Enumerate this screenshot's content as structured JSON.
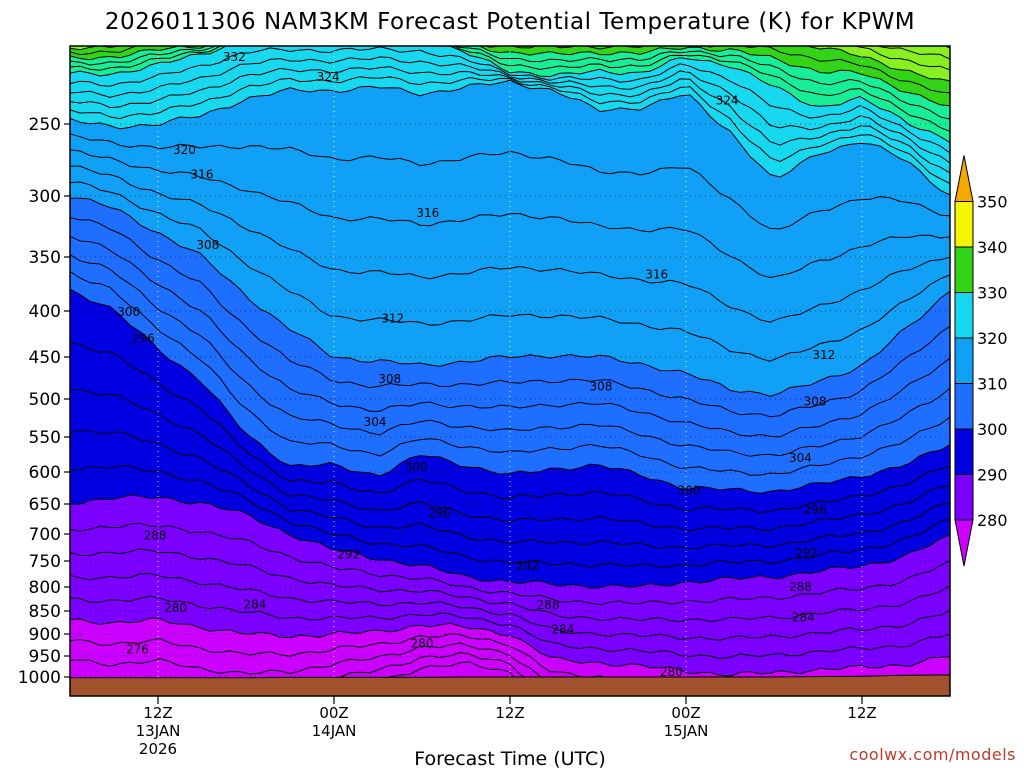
{
  "chart_data": {
    "type": "heatmap",
    "title": "2026011306 NAM3KM Forecast Potential Temperature (K) for KPWM",
    "xlabel": "Forecast Time (UTC)",
    "ylabel": "",
    "credit": "coolwx.com/models",
    "y_ticks": [
      250,
      300,
      350,
      400,
      450,
      500,
      550,
      600,
      650,
      700,
      750,
      800,
      850,
      900,
      950,
      1000
    ],
    "y_tick_labels": [
      "250",
      "300",
      "350",
      "400",
      "450",
      "500",
      "550",
      "600",
      "650",
      "700",
      "750",
      "800",
      "850",
      "900",
      "950",
      "1000"
    ],
    "ylim": [
      200,
      1010
    ],
    "x_range_hours": [
      6,
      66
    ],
    "x_ticks": [
      {
        "hour": 12,
        "line1": "12Z",
        "line2": "13JAN",
        "line3": "2026"
      },
      {
        "hour": 24,
        "line1": "00Z",
        "line2": "14JAN",
        "line3": ""
      },
      {
        "hour": 36,
        "line1": "12Z",
        "line2": "",
        "line3": ""
      },
      {
        "hour": 48,
        "line1": "00Z",
        "line2": "15JAN",
        "line3": ""
      },
      {
        "hour": 60,
        "line1": "12Z",
        "line2": "",
        "line3": ""
      }
    ],
    "colorbar": {
      "levels": [
        280,
        290,
        300,
        310,
        320,
        330,
        340,
        350
      ],
      "labels": [
        "280",
        "290",
        "300",
        "310",
        "320",
        "330",
        "340",
        "350"
      ],
      "colors": [
        "#cc00ff",
        "#7b00ff",
        "#0000e0",
        "#1e6fff",
        "#10a0f5",
        "#18d8f0",
        "#18ee98",
        "#33d418",
        "#88f020",
        "#f5f500",
        "#f5a800"
      ]
    },
    "contour_interval": 2,
    "contour_labels": [
      {
        "v": 332,
        "hour": 17.2,
        "p": 210
      },
      {
        "v": 324,
        "hour": 23.6,
        "p": 222
      },
      {
        "v": 324,
        "hour": 50.8,
        "p": 236
      },
      {
        "v": 320,
        "hour": 13.8,
        "p": 268
      },
      {
        "v": 316,
        "hour": 15.0,
        "p": 285
      },
      {
        "v": 316,
        "hour": 30.4,
        "p": 314
      },
      {
        "v": 316,
        "hour": 46.0,
        "p": 366
      },
      {
        "v": 308,
        "hour": 15.4,
        "p": 340
      },
      {
        "v": 312,
        "hour": 28.0,
        "p": 408
      },
      {
        "v": 312,
        "hour": 57.4,
        "p": 448
      },
      {
        "v": 300,
        "hour": 10.0,
        "p": 401
      },
      {
        "v": 296,
        "hour": 11.0,
        "p": 430
      },
      {
        "v": 308,
        "hour": 27.8,
        "p": 476
      },
      {
        "v": 308,
        "hour": 42.2,
        "p": 485
      },
      {
        "v": 308,
        "hour": 56.8,
        "p": 503
      },
      {
        "v": 304,
        "hour": 26.8,
        "p": 530
      },
      {
        "v": 304,
        "hour": 55.8,
        "p": 580
      },
      {
        "v": 300,
        "hour": 29.6,
        "p": 593
      },
      {
        "v": 300,
        "hour": 48.2,
        "p": 629
      },
      {
        "v": 296,
        "hour": 31.2,
        "p": 665
      },
      {
        "v": 296,
        "hour": 56.8,
        "p": 660
      },
      {
        "v": 292,
        "hour": 25.0,
        "p": 738
      },
      {
        "v": 292,
        "hour": 37.2,
        "p": 760
      },
      {
        "v": 292,
        "hour": 56.2,
        "p": 735
      },
      {
        "v": 288,
        "hour": 11.8,
        "p": 703
      },
      {
        "v": 288,
        "hour": 38.6,
        "p": 838
      },
      {
        "v": 288,
        "hour": 55.8,
        "p": 800
      },
      {
        "v": 284,
        "hour": 18.6,
        "p": 836
      },
      {
        "v": 284,
        "hour": 39.6,
        "p": 890
      },
      {
        "v": 284,
        "hour": 56.0,
        "p": 864
      },
      {
        "v": 280,
        "hour": 13.2,
        "p": 844
      },
      {
        "v": 280,
        "hour": 30.0,
        "p": 922
      },
      {
        "v": 280,
        "hour": 47.0,
        "p": 988
      },
      {
        "v": 276,
        "hour": 10.6,
        "p": 935
      }
    ],
    "thermal_layers": [
      {
        "v": 280,
        "p": [
          870,
          875,
          870,
          885,
          900,
          905,
          900,
          895,
          880,
          885,
          900,
          960,
          965,
          975,
          985,
          995,
          990,
          982,
          978,
          970,
          950
        ]
      },
      {
        "v": 290,
        "p": [
          648,
          640,
          640,
          648,
          668,
          700,
          730,
          745,
          760,
          780,
          790,
          795,
          798,
          800,
          790,
          785,
          780,
          770,
          760,
          740,
          705
        ]
      },
      {
        "v": 300,
        "p": [
          380,
          400,
          440,
          480,
          545,
          592,
          590,
          605,
          575,
          590,
          605,
          595,
          590,
          605,
          625,
          628,
          630,
          620,
          605,
          590,
          560
        ]
      },
      {
        "v": 310,
        "p": [
          300,
          310,
          330,
          350,
          385,
          420,
          450,
          455,
          460,
          455,
          450,
          448,
          450,
          458,
          470,
          488,
          495,
          480,
          460,
          420,
          380
        ]
      },
      {
        "v": 320,
        "p": [
          248,
          252,
          250,
          245,
          235,
          230,
          230,
          228,
          232,
          228,
          225,
          230,
          242,
          240,
          232,
          255,
          290,
          270,
          262,
          275,
          300
        ]
      },
      {
        "v": 330,
        "p": [
          220,
          220,
          215,
          208,
          200,
          200,
          200,
          200,
          200,
          208,
          218,
          222,
          218,
          220,
          210,
          215,
          228,
          240,
          235,
          248,
          262
        ]
      },
      {
        "v": 340,
        "p": [
          205,
          203,
          200,
          200,
          200,
          200,
          200,
          200,
          200,
          200,
          200,
          200,
          200,
          200,
          200,
          200,
          200,
          204,
          210,
          218,
          226
        ]
      }
    ],
    "surface_pressure": [
      1002,
      1002,
      1002,
      1002,
      1002,
      1001,
      1001,
      1001,
      1001,
      1000,
      1000,
      1000,
      1000,
      1000,
      1000,
      1000,
      1000,
      999,
      998,
      996,
      995
    ]
  }
}
